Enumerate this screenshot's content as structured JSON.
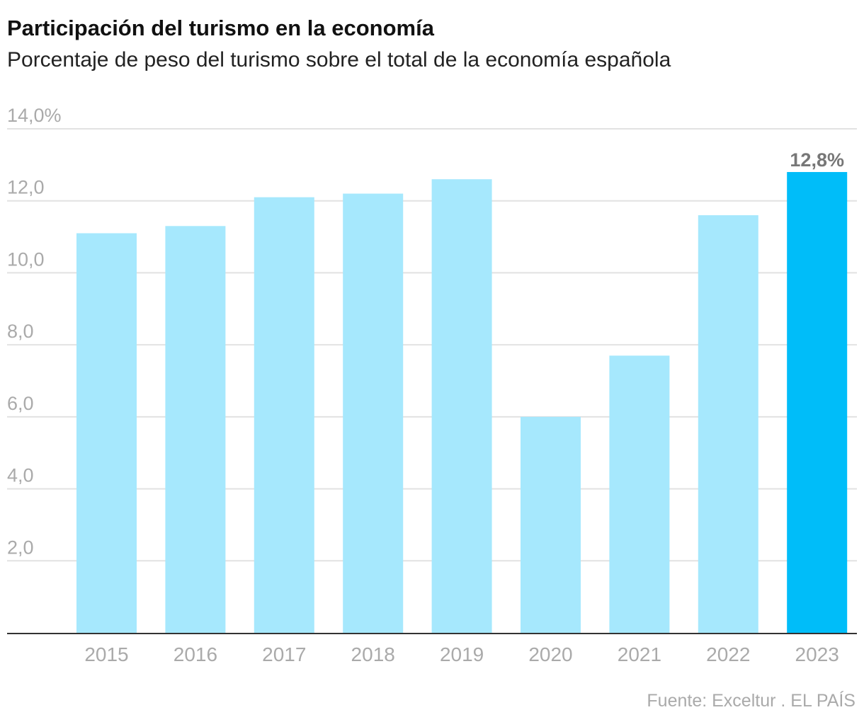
{
  "header": {
    "title": "Participación del turismo en la economía",
    "subtitle": "Porcentaje de peso del turismo sobre el total de la economía española"
  },
  "footer": {
    "source": "Fuente: Exceltur . EL PAÍS"
  },
  "colors": {
    "bar": "#a6e8fd",
    "highlight": "#00bdf9",
    "grid": "#e2e2e2",
    "axis": "#333333"
  },
  "chart_data": {
    "type": "bar",
    "title": "Participación del turismo en la economía",
    "subtitle": "Porcentaje de peso del turismo sobre el total de la economía española",
    "categories": [
      "2015",
      "2016",
      "2017",
      "2018",
      "2019",
      "2020",
      "2021",
      "2022",
      "2023"
    ],
    "values": [
      11.1,
      11.3,
      12.1,
      12.2,
      12.6,
      6.0,
      7.7,
      11.6,
      12.8
    ],
    "highlight_index": 8,
    "data_labels": [
      {
        "index": 8,
        "text": "12,8%"
      }
    ],
    "ylim": [
      0,
      14
    ],
    "yticks": [
      {
        "value": 2,
        "label": "2,0"
      },
      {
        "value": 4,
        "label": "4,0"
      },
      {
        "value": 6,
        "label": "6,0"
      },
      {
        "value": 8,
        "label": "8,0"
      },
      {
        "value": 10,
        "label": "10,0"
      },
      {
        "value": 12,
        "label": "12,0"
      },
      {
        "value": 14,
        "label": "14,0%"
      }
    ],
    "grid": true,
    "xlabel": "",
    "ylabel": ""
  }
}
